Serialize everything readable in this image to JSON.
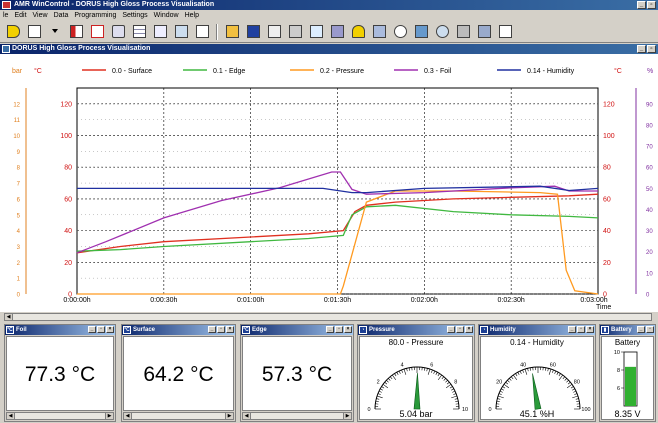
{
  "app": {
    "title": "AMR WinControl - DORUS High Gloss Process Visualisation"
  },
  "menu": [
    "le",
    "Edit",
    "View",
    "Data",
    "Programming",
    "Settings",
    "Window",
    "Help"
  ],
  "mdi_title": "DORUS High Gloss Process Visualisation",
  "colors": {
    "surface": "#e03020",
    "edge": "#40b840",
    "pressure": "#ff9a20",
    "foil": "#a030b0",
    "humidity": "#2030a0",
    "c_axis": "#d01010",
    "bar_axis": "#e08020",
    "pct_axis": "#8030a0"
  },
  "axes": {
    "left_bar_unit": "bar",
    "left_c_unit": "°C",
    "right_c_unit": "°C",
    "right_pct_unit": "%",
    "x_unit": "Time"
  },
  "chart_data": {
    "type": "line",
    "xlabel": "Time",
    "x_ticks": [
      "0:00:00h",
      "0:00:30h",
      "0:01:00h",
      "0:01:30h",
      "0:02:00h",
      "0:02:30h",
      "0:03:00h"
    ],
    "x_range_seconds": [
      0,
      180
    ],
    "y_left_c_ticks": [
      "0",
      "20",
      "40",
      "60",
      "80",
      "100",
      "120"
    ],
    "y_left_bar_ticks": [
      "0",
      "1",
      "2",
      "3",
      "4",
      "5",
      "6",
      "7",
      "8",
      "9",
      "10",
      "11",
      "12"
    ],
    "y_right_c_ticks": [
      "0",
      "20",
      "40",
      "60",
      "80",
      "100",
      "120"
    ],
    "y_right_pct_ticks": [
      "0",
      "10",
      "20",
      "30",
      "40",
      "50",
      "60",
      "70",
      "80",
      "90"
    ],
    "ylim": [
      0,
      130
    ],
    "series": [
      {
        "name": "0.0 - Surface",
        "key": "surface",
        "axis": "c",
        "points": [
          [
            0,
            26
          ],
          [
            15,
            30
          ],
          [
            30,
            33
          ],
          [
            60,
            36
          ],
          [
            80,
            38
          ],
          [
            92,
            40
          ],
          [
            96,
            52
          ],
          [
            100,
            56
          ],
          [
            110,
            58
          ],
          [
            130,
            60
          ],
          [
            150,
            61
          ],
          [
            170,
            62
          ],
          [
            180,
            63
          ]
        ]
      },
      {
        "name": "0.1 - Edge",
        "key": "edge",
        "axis": "c",
        "points": [
          [
            0,
            27
          ],
          [
            15,
            28
          ],
          [
            30,
            30
          ],
          [
            60,
            33
          ],
          [
            80,
            35
          ],
          [
            92,
            37
          ],
          [
            95,
            50
          ],
          [
            100,
            55
          ],
          [
            110,
            56
          ],
          [
            130,
            52
          ],
          [
            150,
            50
          ],
          [
            170,
            49
          ],
          [
            180,
            48
          ]
        ]
      },
      {
        "name": "0.2 - Pressure",
        "key": "pressure",
        "axis": "bar",
        "points": [
          [
            0,
            0
          ],
          [
            91,
            0
          ],
          [
            92,
            0.5
          ],
          [
            100,
            5.8
          ],
          [
            110,
            6.5
          ],
          [
            130,
            6.5
          ],
          [
            160,
            6.4
          ],
          [
            166,
            6.3
          ],
          [
            169,
            1.5
          ],
          [
            172,
            0.2
          ],
          [
            180,
            0
          ]
        ]
      },
      {
        "name": "0.3 - Foil",
        "key": "foil",
        "axis": "c",
        "points": [
          [
            0,
            26
          ],
          [
            10,
            33
          ],
          [
            30,
            48
          ],
          [
            50,
            59
          ],
          [
            70,
            67
          ],
          [
            88,
            77
          ],
          [
            91,
            77
          ],
          [
            95,
            66
          ],
          [
            100,
            63
          ],
          [
            120,
            64
          ],
          [
            150,
            67
          ],
          [
            165,
            68
          ],
          [
            170,
            65
          ],
          [
            180,
            65
          ]
        ]
      },
      {
        "name": "0.14 - Humidity",
        "key": "humidity",
        "axis": "pct",
        "points": [
          [
            0,
            50
          ],
          [
            85,
            50
          ],
          [
            95,
            48
          ],
          [
            100,
            48
          ],
          [
            120,
            50
          ],
          [
            160,
            51
          ],
          [
            170,
            49
          ],
          [
            180,
            50
          ]
        ]
      }
    ]
  },
  "panels": [
    {
      "key": "foil",
      "title": "Foil",
      "value": "77.3 °C",
      "left": 4,
      "width": 112
    },
    {
      "key": "surface",
      "title": "Surface",
      "value": "64.2 °C",
      "left": 121,
      "width": 115
    },
    {
      "key": "edge",
      "title": "Edge",
      "value": "57.3 °C",
      "left": 240,
      "width": 114
    }
  ],
  "gauges": [
    {
      "key": "pressure",
      "title": "Pressure",
      "label": "80.0 - Pressure",
      "value_text": "5.04 bar",
      "value": 5.04,
      "min": 0,
      "max": 10,
      "ticks": [
        "0",
        "2",
        "4",
        "6",
        "8",
        "10"
      ],
      "left": 357,
      "width": 118
    },
    {
      "key": "humidity",
      "title": "Humidity",
      "label": "0.14 - Humidity",
      "value_text": "45.1 %H",
      "value": 45.1,
      "min": 0,
      "max": 100,
      "ticks": [
        "0",
        "20",
        "40",
        "60",
        "80",
        "100"
      ],
      "left": 478,
      "width": 118
    }
  ],
  "battery": {
    "title": "Battery",
    "label": "Battery",
    "value_text": "8.35 V",
    "value": 8.35,
    "min": 4,
    "max": 10,
    "ticks": [
      "10",
      "8",
      "6"
    ]
  }
}
